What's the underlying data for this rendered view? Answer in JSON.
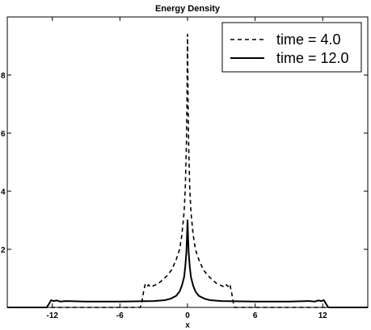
{
  "chart_data": {
    "type": "line",
    "title": "Energy Density",
    "xlabel": "x",
    "ylabel": "",
    "xlim": [
      -16,
      16
    ],
    "ylim": [
      0,
      10
    ],
    "xticks": [
      -12,
      -6,
      0,
      6,
      12
    ],
    "xtick_labels": [
      "-12",
      "-6",
      "0",
      "6",
      "12"
    ],
    "yticks": [
      2,
      4,
      6,
      8
    ],
    "ytick_labels": [
      "2",
      "4",
      "6",
      "8"
    ],
    "grid": false,
    "legend_position": "top-right",
    "series": [
      {
        "name": "time = 4.0",
        "style": "dashed",
        "color": "#000000",
        "x": [
          -16,
          -4.2,
          -4.1,
          -4.0,
          -3.9,
          -3.75,
          -3.6,
          -3.45,
          -3.3,
          -3.0,
          -2.6,
          -2.2,
          -1.8,
          -1.4,
          -1.0,
          -0.7,
          -0.5,
          -0.3,
          -0.2,
          -0.1,
          -0.05,
          0,
          0.05,
          0.1,
          0.2,
          0.3,
          0.5,
          0.7,
          1.0,
          1.4,
          1.8,
          2.2,
          2.6,
          3.0,
          3.3,
          3.45,
          3.6,
          3.75,
          3.9,
          4.0,
          4.1,
          4.2,
          16
        ],
        "y": [
          0,
          0,
          0.1,
          0.3,
          0.55,
          0.8,
          0.72,
          0.78,
          0.7,
          0.75,
          0.82,
          0.95,
          1.1,
          1.3,
          1.65,
          2.0,
          2.5,
          3.3,
          4.1,
          5.6,
          7.0,
          9.4,
          7.0,
          5.6,
          4.1,
          3.3,
          2.5,
          2.0,
          1.65,
          1.3,
          1.1,
          0.95,
          0.82,
          0.75,
          0.7,
          0.78,
          0.72,
          0.8,
          0.55,
          0.3,
          0.1,
          0,
          0
        ]
      },
      {
        "name": "time = 12.0",
        "style": "solid",
        "color": "#000000",
        "x": [
          -16,
          -12.5,
          -12.3,
          -12.1,
          -11.9,
          -11.6,
          -11.3,
          -10.8,
          -9,
          -6,
          -3,
          -2,
          -1.5,
          -1.0,
          -0.7,
          -0.5,
          -0.3,
          -0.2,
          -0.1,
          -0.05,
          0,
          0.05,
          0.1,
          0.2,
          0.3,
          0.5,
          0.7,
          1.0,
          1.5,
          2,
          3,
          6,
          9,
          10.8,
          11.3,
          11.6,
          11.9,
          12.1,
          12.3,
          12.5,
          16
        ],
        "y": [
          0,
          0,
          0.12,
          0.25,
          0.22,
          0.24,
          0.2,
          0.22,
          0.2,
          0.2,
          0.22,
          0.25,
          0.3,
          0.4,
          0.55,
          0.75,
          1.05,
          1.4,
          1.9,
          2.4,
          3.0,
          2.4,
          1.9,
          1.4,
          1.05,
          0.75,
          0.55,
          0.4,
          0.3,
          0.25,
          0.22,
          0.2,
          0.2,
          0.22,
          0.2,
          0.24,
          0.22,
          0.25,
          0.12,
          0,
          0
        ]
      }
    ]
  }
}
